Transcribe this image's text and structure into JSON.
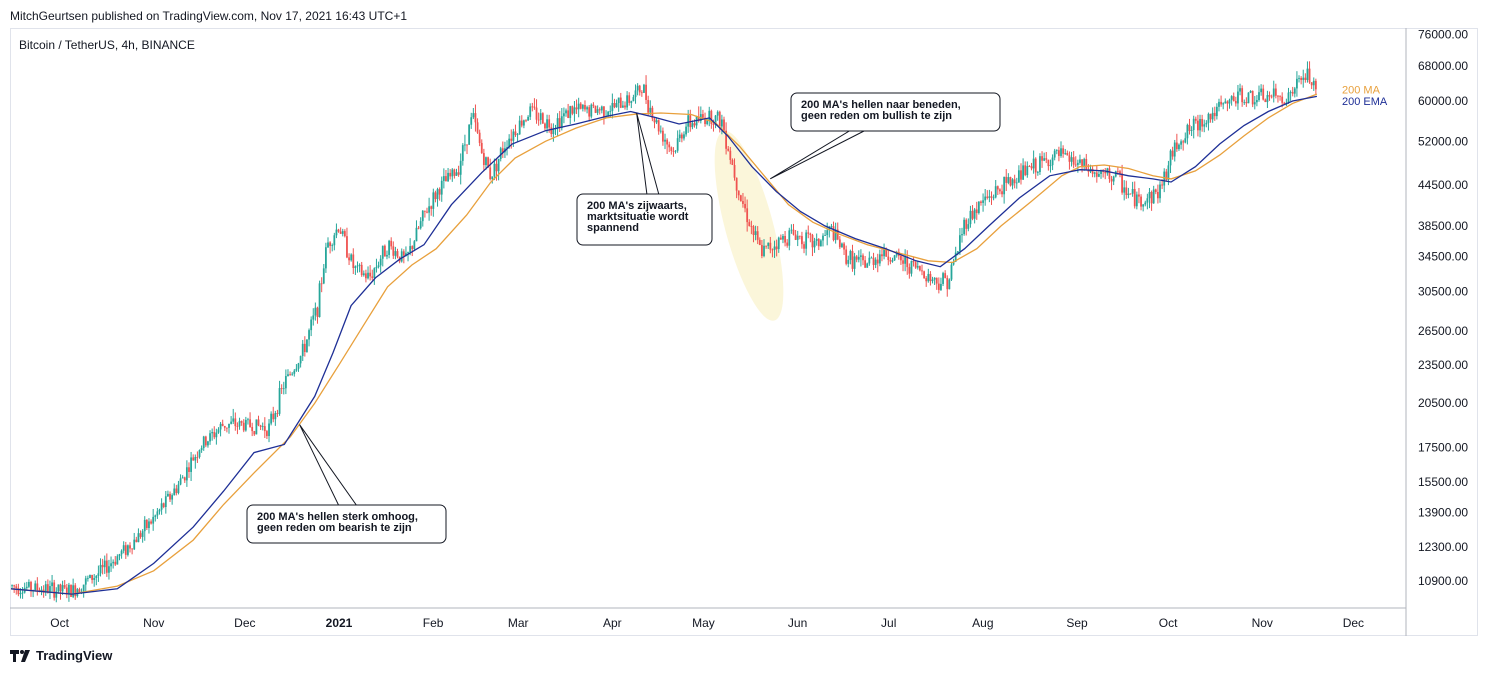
{
  "header": {
    "published": "MitchGeurtsen published on TradingView.com, Nov 17, 2021 16:43 UTC+1"
  },
  "symbol": "Bitcoin / TetherUS, 4h, BINANCE",
  "footer": {
    "brand": "TradingView"
  },
  "colors": {
    "up": "#26a69a",
    "down": "#ef5350",
    "ma": "#e8a03c",
    "ema": "#1e2f96",
    "highlight": "#faf4d3"
  },
  "chart_data": {
    "type": "line",
    "title": "Bitcoin / TetherUS, 4h, BINANCE",
    "y_scale": "log",
    "ylim": [
      9900,
      77500
    ],
    "y_ticks": [
      "76000.00",
      "68000.00",
      "60000.00",
      "52000.00",
      "44500.00",
      "38500.00",
      "34500.00",
      "30500.00",
      "26500.00",
      "23500.00",
      "20500.00",
      "17500.00",
      "15500.00",
      "13900.00",
      "12300.00",
      "10900.00"
    ],
    "x_ticks": [
      {
        "label": "Oct",
        "day": 16
      },
      {
        "label": "Nov",
        "day": 47
      },
      {
        "label": "Dec",
        "day": 77
      },
      {
        "label": "2021",
        "day": 108,
        "bold": true
      },
      {
        "label": "Feb",
        "day": 139
      },
      {
        "label": "Mar",
        "day": 167
      },
      {
        "label": "Apr",
        "day": 198
      },
      {
        "label": "May",
        "day": 228
      },
      {
        "label": "Jun",
        "day": 259
      },
      {
        "label": "Jul",
        "day": 289
      },
      {
        "label": "Aug",
        "day": 320
      },
      {
        "label": "Sep",
        "day": 351
      },
      {
        "label": "Oct",
        "day": 381
      },
      {
        "label": "Nov",
        "day": 412
      },
      {
        "label": "Dec",
        "day": 442
      }
    ],
    "xlim_days": [
      0,
      459
    ],
    "price_path": [
      [
        0,
        10700
      ],
      [
        10,
        10600
      ],
      [
        20,
        10500
      ],
      [
        30,
        11300
      ],
      [
        40,
        12500
      ],
      [
        47,
        13600
      ],
      [
        55,
        15300
      ],
      [
        62,
        17500
      ],
      [
        70,
        19000
      ],
      [
        77,
        19000
      ],
      [
        85,
        18800
      ],
      [
        90,
        22000
      ],
      [
        96,
        24500
      ],
      [
        101,
        29000
      ],
      [
        104,
        36000
      ],
      [
        108,
        38500
      ],
      [
        113,
        33000
      ],
      [
        118,
        32000
      ],
      [
        124,
        36000
      ],
      [
        130,
        34000
      ],
      [
        136,
        40000
      ],
      [
        141,
        44000
      ],
      [
        147,
        47000
      ],
      [
        152,
        57000
      ],
      [
        155,
        50000
      ],
      [
        158,
        46000
      ],
      [
        163,
        52000
      ],
      [
        171,
        58000
      ],
      [
        178,
        55000
      ],
      [
        184,
        58000
      ],
      [
        190,
        58000
      ],
      [
        198,
        58500
      ],
      [
        204,
        60500
      ],
      [
        208,
        63000
      ],
      [
        212,
        56000
      ],
      [
        218,
        50000
      ],
      [
        222,
        55000
      ],
      [
        230,
        57000
      ],
      [
        234,
        56000
      ],
      [
        237,
        49000
      ],
      [
        240,
        43000
      ],
      [
        244,
        38000
      ],
      [
        247,
        35000
      ],
      [
        251,
        36000
      ],
      [
        257,
        37500
      ],
      [
        265,
        36000
      ],
      [
        270,
        38000
      ],
      [
        275,
        34500
      ],
      [
        281,
        33500
      ],
      [
        287,
        35000
      ],
      [
        293,
        34000
      ],
      [
        299,
        33000
      ],
      [
        305,
        31500
      ],
      [
        309,
        32000
      ],
      [
        314,
        39000
      ],
      [
        320,
        42000
      ],
      [
        326,
        44000
      ],
      [
        333,
        46500
      ],
      [
        339,
        48000
      ],
      [
        345,
        49500
      ],
      [
        349,
        48500
      ],
      [
        353,
        47500
      ],
      [
        358,
        46000
      ],
      [
        364,
        46000
      ],
      [
        368,
        43000
      ],
      [
        372,
        42000
      ],
      [
        378,
        43500
      ],
      [
        384,
        52000
      ],
      [
        390,
        55000
      ],
      [
        396,
        57500
      ],
      [
        404,
        61000
      ],
      [
        410,
        60500
      ],
      [
        416,
        61000
      ],
      [
        420,
        60500
      ],
      [
        424,
        64000
      ],
      [
        427,
        66000
      ],
      [
        430,
        61000
      ]
    ],
    "ma200": [
      [
        0,
        10600
      ],
      [
        20,
        10400
      ],
      [
        35,
        10700
      ],
      [
        47,
        11300
      ],
      [
        60,
        12600
      ],
      [
        70,
        14300
      ],
      [
        80,
        16000
      ],
      [
        92,
        18200
      ],
      [
        100,
        20500
      ],
      [
        108,
        23500
      ],
      [
        116,
        27000
      ],
      [
        124,
        31000
      ],
      [
        132,
        33500
      ],
      [
        140,
        35500
      ],
      [
        150,
        40000
      ],
      [
        158,
        45000
      ],
      [
        166,
        49000
      ],
      [
        176,
        52000
      ],
      [
        186,
        54500
      ],
      [
        196,
        56500
      ],
      [
        206,
        57300
      ],
      [
        214,
        57500
      ],
      [
        224,
        57200
      ],
      [
        232,
        55500
      ],
      [
        240,
        51000
      ],
      [
        248,
        46000
      ],
      [
        256,
        41500
      ],
      [
        264,
        39000
      ],
      [
        272,
        37500
      ],
      [
        282,
        36000
      ],
      [
        292,
        35000
      ],
      [
        302,
        34000
      ],
      [
        310,
        33800
      ],
      [
        318,
        35500
      ],
      [
        326,
        38500
      ],
      [
        336,
        42000
      ],
      [
        346,
        46000
      ],
      [
        352,
        47500
      ],
      [
        360,
        47800
      ],
      [
        368,
        47200
      ],
      [
        376,
        46000
      ],
      [
        382,
        45500
      ],
      [
        390,
        46800
      ],
      [
        398,
        49500
      ],
      [
        406,
        53000
      ],
      [
        414,
        56500
      ],
      [
        422,
        59500
      ],
      [
        430,
        61500
      ]
    ],
    "ema200": [
      [
        0,
        10600
      ],
      [
        20,
        10400
      ],
      [
        35,
        10600
      ],
      [
        47,
        11600
      ],
      [
        60,
        13200
      ],
      [
        70,
        15000
      ],
      [
        80,
        17200
      ],
      [
        90,
        17700
      ],
      [
        100,
        21000
      ],
      [
        106,
        24500
      ],
      [
        112,
        29000
      ],
      [
        120,
        32000
      ],
      [
        128,
        34200
      ],
      [
        136,
        36000
      ],
      [
        145,
        41500
      ],
      [
        155,
        46500
      ],
      [
        165,
        51500
      ],
      [
        176,
        54000
      ],
      [
        186,
        55300
      ],
      [
        196,
        56800
      ],
      [
        204,
        57800
      ],
      [
        212,
        56600
      ],
      [
        220,
        55300
      ],
      [
        230,
        56500
      ],
      [
        236,
        53000
      ],
      [
        244,
        47500
      ],
      [
        252,
        43500
      ],
      [
        260,
        40500
      ],
      [
        268,
        38500
      ],
      [
        278,
        36800
      ],
      [
        288,
        35500
      ],
      [
        298,
        34000
      ],
      [
        306,
        33300
      ],
      [
        314,
        35500
      ],
      [
        322,
        38500
      ],
      [
        332,
        42500
      ],
      [
        342,
        46000
      ],
      [
        352,
        47000
      ],
      [
        360,
        46800
      ],
      [
        368,
        46000
      ],
      [
        376,
        45500
      ],
      [
        382,
        45000
      ],
      [
        390,
        47500
      ],
      [
        398,
        51500
      ],
      [
        406,
        55000
      ],
      [
        414,
        57800
      ],
      [
        422,
        60000
      ],
      [
        430,
        61000
      ]
    ],
    "legend": [
      {
        "name": "200 MA",
        "color": "#e8a03c",
        "value": 62500
      },
      {
        "name": "200 EMA",
        "color": "#1e2f96",
        "value": 60000
      }
    ],
    "annotations": [
      {
        "lines": [
          "200 MA's hellen sterk omhoog,",
          "geen reden om bearish te zijn"
        ],
        "target_day": 95,
        "target_price": 19000,
        "box_anchor": "bottom-left"
      },
      {
        "lines": [
          "200 MA's zijwaarts,",
          "marktsituatie wordt",
          "spannend"
        ],
        "target_day": 206,
        "target_price": 57500,
        "box_anchor": "middle"
      },
      {
        "lines": [
          "200 MA's hellen naar beneden,",
          "geen reden om bullish te zijn"
        ],
        "target_day": 250,
        "target_price": 45500,
        "box_anchor": "top-right"
      }
    ]
  }
}
